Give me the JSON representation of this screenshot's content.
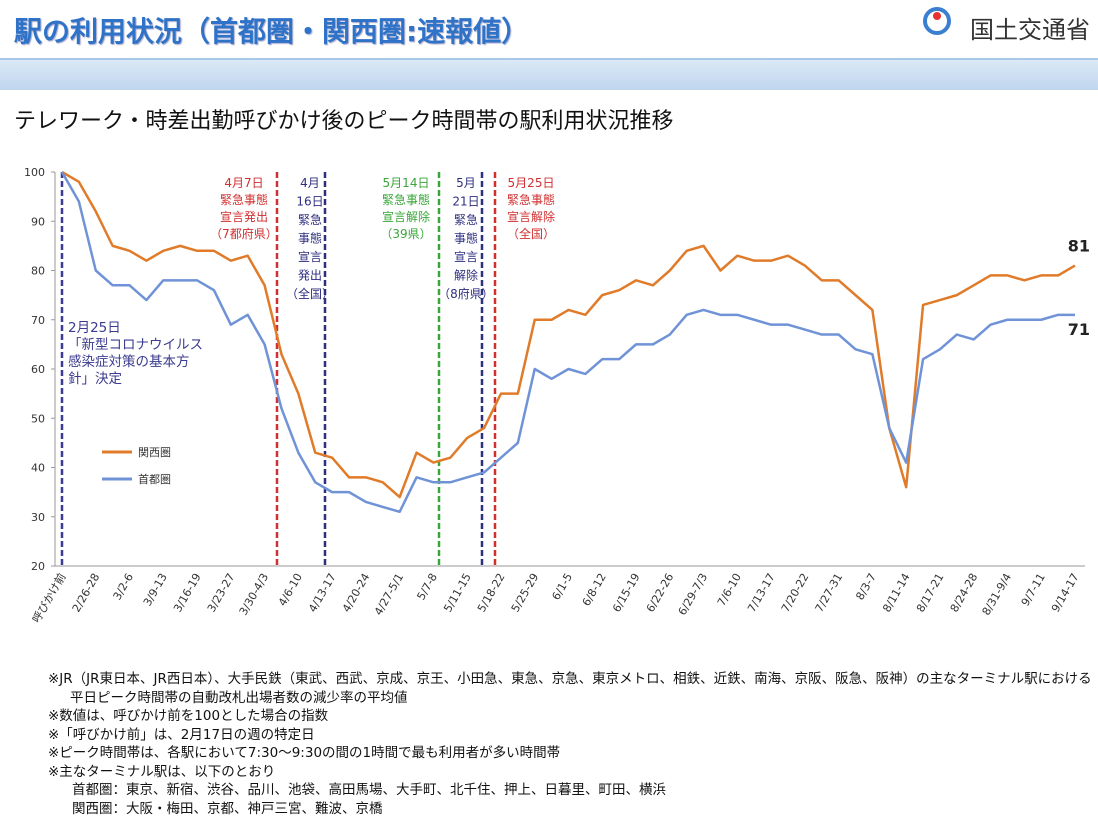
{
  "header": {
    "title": "駅の利用状況（首都圏・関西圏:速報値）",
    "org": "国土交通省"
  },
  "chart_data": {
    "type": "line",
    "title": "テレワーク・時差出勤呼びかけ後のピーク時間帯の駅利用状況推移",
    "categories": [
      "呼びかけ前",
      null,
      "2/26-28",
      null,
      "3/2-6",
      null,
      "3/9-13",
      null,
      "3/16-19",
      null,
      "3/23-27",
      null,
      "3/30-4/3",
      null,
      "4/6-10",
      null,
      "4/13-17",
      null,
      "4/20-24",
      null,
      "4/27-5/1",
      null,
      "5/7-8",
      null,
      "5/11-15",
      null,
      "5/18-22",
      null,
      "5/25-29",
      null,
      "6/1-5",
      null,
      "6/8-12",
      null,
      "6/15-19",
      null,
      "6/22-26",
      null,
      "6/29-7/3",
      null,
      "7/6-10",
      null,
      "7/13-17",
      null,
      "7/20-22",
      null,
      "7/27-31",
      null,
      "8/3-7",
      null,
      "8/11-14",
      null,
      "8/17-21",
      null,
      "8/24-28",
      null,
      "8/31-9/4",
      null,
      "9/7-11",
      null,
      "9/14-17"
    ],
    "series": [
      {
        "name": "関西圏",
        "color": "#e07b2a",
        "values": [
          100,
          98,
          92,
          85,
          84,
          82,
          84,
          85,
          84,
          84,
          82,
          83,
          77,
          63,
          55,
          43,
          42,
          38,
          38,
          37,
          34,
          43,
          41,
          42,
          46,
          48,
          55,
          55,
          70,
          70,
          72,
          71,
          75,
          76,
          78,
          77,
          80,
          84,
          85,
          80,
          83,
          82,
          82,
          83,
          81,
          78,
          78,
          75,
          72,
          48,
          36,
          73,
          74,
          75,
          77,
          79,
          79,
          78,
          79,
          79,
          81
        ]
      },
      {
        "name": "首都圏",
        "color": "#6f93d6",
        "values": [
          100,
          94,
          80,
          77,
          77,
          74,
          78,
          78,
          78,
          76,
          69,
          71,
          65,
          52,
          43,
          37,
          35,
          35,
          33,
          32,
          31,
          38,
          37,
          37,
          38,
          39,
          42,
          45,
          60,
          58,
          60,
          59,
          62,
          62,
          65,
          65,
          67,
          71,
          72,
          71,
          71,
          70,
          69,
          69,
          68,
          67,
          67,
          64,
          63,
          48,
          41,
          62,
          64,
          67,
          66,
          69,
          70,
          70,
          70,
          71,
          71
        ]
      }
    ],
    "value_labels": {
      "0": "81",
      "1": "71"
    },
    "ylim": [
      20,
      100
    ],
    "yticks": [
      20,
      30,
      40,
      50,
      60,
      70,
      80,
      90,
      100
    ],
    "grid": false,
    "annotations": [
      {
        "lines": [
          "2月25日",
          "「新型コロナウイルス",
          "感染症対策の基本方",
          "針」決定"
        ],
        "color": "#3b3b8f"
      },
      {
        "lines": [
          "4月7日",
          "緊急事態",
          "宣言発出",
          "（7都府県）"
        ],
        "color": "#d03030"
      },
      {
        "lines": [
          "4月",
          "16日",
          "緊急",
          "事態",
          "宣言",
          "発出",
          "（全国）"
        ],
        "color": "#2f2f80"
      },
      {
        "lines": [
          "5月14日",
          "緊急事態",
          "宣言解除",
          "（39県）"
        ],
        "color": "#3aa53a"
      },
      {
        "lines": [
          "5月",
          "21日",
          "緊急",
          "事態",
          "宣言",
          "解除",
          "（8府県）"
        ],
        "color": "#2f2f80"
      },
      {
        "lines": [
          "5月25日",
          "緊急事態",
          "宣言解除",
          "（全国）"
        ],
        "color": "#d03030"
      }
    ]
  },
  "notes": [
    "※JR（JR東日本、JR西日本）、大手民鉄（東武、西武、京成、京王、小田急、東急、京急、東京メトロ、相鉄、近鉄、南海、京阪、阪急、阪神）の主なターミナル駅における",
    "平日ピーク時間帯の自動改札出場者数の減少率の平均値",
    "※数値は、呼びかけ前を100とした場合の指数",
    "※「呼びかけ前」は、2月17日の週の特定日",
    "※ピーク時間帯は、各駅において7:30～9:30の間の1時間で最も利用者が多い時間帯",
    "※主なターミナル駅は、以下のとおり",
    "首都圏：東京、新宿、渋谷、品川、池袋、高田馬場、大手町、北千住、押上、日暮里、町田、横浜",
    "関西圏：大阪・梅田、京都、神戸三宮、難波、京橋"
  ]
}
